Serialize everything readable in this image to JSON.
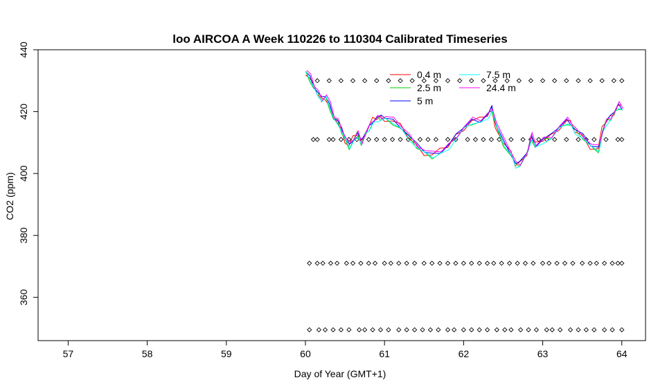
{
  "chart_data": {
    "type": "line",
    "title": "loo AIRCOA A  Week 110226 to 110304  Calibrated Timeseries",
    "xlabel": "Day of Year (GMT+1)",
    "ylabel": "CO2 (ppm)",
    "xlim": [
      56.62,
      64.3
    ],
    "ylim": [
      346,
      440
    ],
    "x_ticks": [
      "57",
      "58",
      "59",
      "60",
      "61",
      "62",
      "63",
      "64"
    ],
    "y_ticks": [
      "360",
      "380",
      "400",
      "420",
      "440"
    ],
    "legend_position": "top-right",
    "series": [
      {
        "name": "0.4 m",
        "color": "#ff0000"
      },
      {
        "name": "2.5 m",
        "color": "#00cd00"
      },
      {
        "name": "5 m",
        "color": "#0000ff"
      },
      {
        "name": "7.5 m",
        "color": "#00ffff"
      },
      {
        "name": "24.4 m",
        "color": "#ff00ff"
      }
    ],
    "co2_profile": {
      "x": [
        60.0,
        60.05,
        60.1,
        60.15,
        60.2,
        60.25,
        60.3,
        60.35,
        60.4,
        60.45,
        60.5,
        60.55,
        60.6,
        60.65,
        60.7,
        60.75,
        60.8,
        60.85,
        60.9,
        60.95,
        61.0,
        61.1,
        61.2,
        61.3,
        61.4,
        61.5,
        61.6,
        61.7,
        61.8,
        61.9,
        62.0,
        62.1,
        62.2,
        62.3,
        62.35,
        62.4,
        62.5,
        62.6,
        62.65,
        62.7,
        62.8,
        62.85,
        62.9,
        63.0,
        63.1,
        63.2,
        63.3,
        63.35,
        63.4,
        63.5,
        63.6,
        63.7,
        63.75,
        63.8,
        63.85,
        63.9,
        63.95,
        64.0
      ],
      "y": [
        433,
        431,
        428,
        426,
        424,
        425,
        422,
        418,
        417,
        414,
        411,
        409,
        411,
        413,
        410,
        413,
        415,
        417,
        418,
        418,
        418,
        417,
        415,
        412,
        409,
        407,
        406,
        407,
        409,
        412,
        415,
        417,
        417,
        419,
        421,
        416,
        410,
        406,
        403,
        403,
        407,
        412,
        409,
        411,
        412,
        415,
        417,
        416,
        414,
        412,
        409,
        408,
        414,
        417,
        418,
        420,
        422,
        421
      ]
    },
    "marker_rows": [
      {
        "y": 430,
        "x": [
          60.15,
          60.3,
          60.45,
          60.6,
          60.75,
          60.9,
          61.05,
          61.2,
          61.35,
          61.5,
          61.65,
          61.8,
          61.95,
          62.1,
          62.25,
          62.4,
          62.55,
          62.7,
          62.85,
          63.0,
          63.15,
          63.3,
          63.45,
          63.6,
          63.75,
          63.9,
          64.0
        ]
      },
      {
        "y": 411,
        "x": [
          60.1,
          60.15,
          60.3,
          60.35,
          60.45,
          60.55,
          60.65,
          60.8,
          60.9,
          61.0,
          61.1,
          61.2,
          61.3,
          61.45,
          61.55,
          61.65,
          61.8,
          61.9,
          62.05,
          62.15,
          62.25,
          62.35,
          62.45,
          62.6,
          62.75,
          62.85,
          62.95,
          63.05,
          63.15,
          63.3,
          63.45,
          63.55,
          63.65,
          63.8,
          63.95,
          64.0
        ]
      },
      {
        "y": 371,
        "x": [
          60.05,
          60.15,
          60.22,
          60.32,
          60.4,
          60.52,
          60.6,
          60.7,
          60.8,
          60.88,
          61.0,
          61.08,
          61.18,
          61.28,
          61.38,
          61.5,
          61.6,
          61.7,
          61.8,
          61.9,
          62.0,
          62.1,
          62.2,
          62.3,
          62.38,
          62.48,
          62.58,
          62.68,
          62.78,
          62.88,
          63.0,
          63.08,
          63.18,
          63.28,
          63.38,
          63.5,
          63.6,
          63.68,
          63.78,
          63.88,
          63.95,
          64.0
        ]
      },
      {
        "y": 349.5,
        "x": [
          60.05,
          60.17,
          60.25,
          60.35,
          60.45,
          60.55,
          60.68,
          60.75,
          60.85,
          60.95,
          61.05,
          61.18,
          61.28,
          61.38,
          61.48,
          61.58,
          61.68,
          61.8,
          61.88,
          62.0,
          62.1,
          62.2,
          62.3,
          62.42,
          62.52,
          62.6,
          62.72,
          62.82,
          62.92,
          63.05,
          63.12,
          63.22,
          63.35,
          63.45,
          63.55,
          63.65,
          63.78,
          63.88,
          64.0
        ]
      }
    ]
  }
}
